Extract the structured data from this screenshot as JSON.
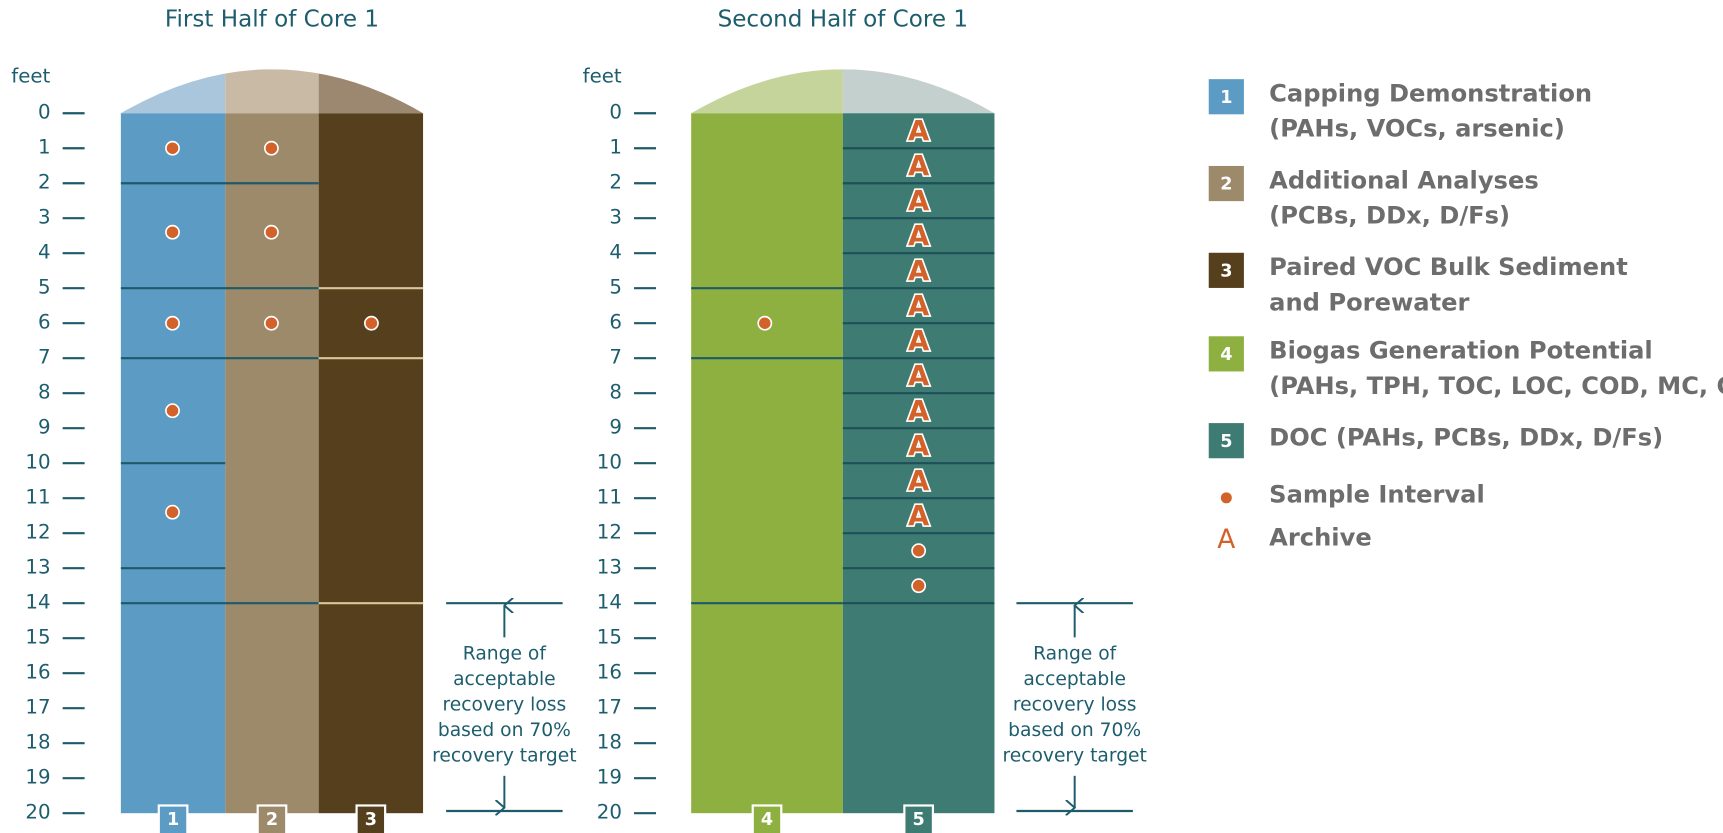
{
  "panels": [
    {
      "title": "First Half of Core 1",
      "unit": "feet",
      "columns": [
        "1",
        "2",
        "3"
      ],
      "annotation": [
        "Range of",
        "acceptable",
        "recovery loss",
        "based on 70%",
        "recovery target"
      ]
    },
    {
      "title": "Second Half of Core 1",
      "unit": "feet",
      "columns": [
        "4",
        "5"
      ],
      "annotation": [
        "Range of",
        "acceptable",
        "recovery loss",
        "based on 70%",
        "recovery target"
      ]
    }
  ],
  "depth_ticks": [
    0,
    1,
    2,
    3,
    4,
    5,
    6,
    7,
    8,
    9,
    10,
    11,
    12,
    13,
    14,
    15,
    16,
    17,
    18,
    19,
    20
  ],
  "archive_mark": "A",
  "legend": [
    {
      "key": "1",
      "lines": [
        "Capping Demonstration",
        "(PAHs, VOCs, arsenic)"
      ]
    },
    {
      "key": "2",
      "lines": [
        "Additional Analyses",
        "(PCBs, DDx, D/Fs)"
      ]
    },
    {
      "key": "3",
      "lines": [
        "Paired VOC Bulk Sediment",
        "and Porewater"
      ]
    },
    {
      "key": "4",
      "lines": [
        "Biogas Generation Potential",
        "(PAHs, TPH, TOC, LOC, COD, MC, GS)"
      ]
    },
    {
      "key": "5",
      "lines": [
        "DOC (PAHs, PCBs, DDx, D/Fs)"
      ]
    },
    {
      "lines": [
        "Sample Interval"
      ]
    },
    {
      "key": "A",
      "lines": [
        "Archive"
      ]
    }
  ]
}
